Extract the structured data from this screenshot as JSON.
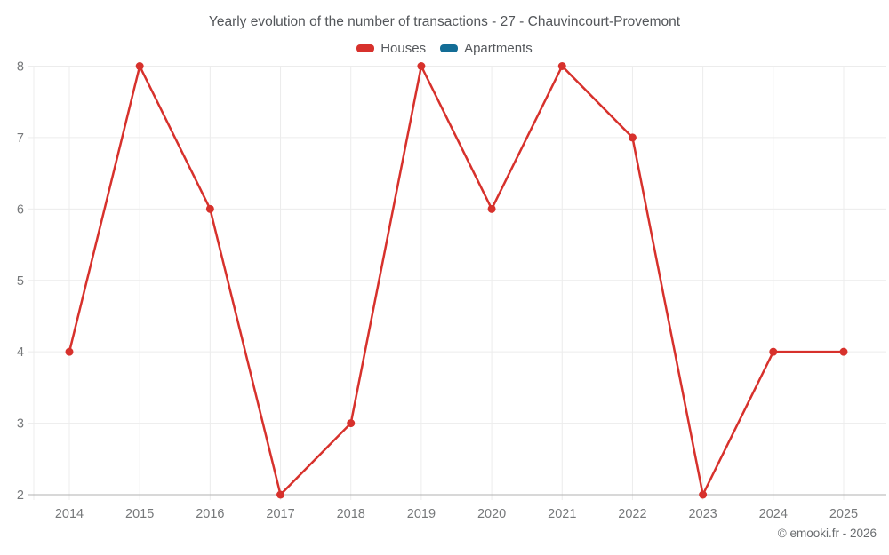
{
  "title": "Yearly evolution of the number of transactions - 27 - Chauvincourt-Provemont",
  "legend": {
    "items": [
      {
        "label": "Houses",
        "color": "#d7312c"
      },
      {
        "label": "Apartments",
        "color": "#136d96"
      }
    ]
  },
  "watermark": "© emooki.fr - 2026",
  "colors": {
    "grid": "#ececec",
    "axis": "#b1b1b1",
    "tick_text": "#76787a",
    "houses": "#d7312c",
    "apartments": "#136d96"
  },
  "chart_data": {
    "type": "line",
    "title": "Yearly evolution of the number of transactions - 27 - Chauvincourt-Provemont",
    "x": [
      "2014",
      "2015",
      "2016",
      "2017",
      "2018",
      "2019",
      "2020",
      "2021",
      "2022",
      "2023",
      "2024",
      "2025"
    ],
    "series": [
      {
        "name": "Houses",
        "color": "#d7312c",
        "values": [
          4,
          8,
          6,
          2,
          3,
          8,
          6,
          8,
          7,
          2,
          4,
          4
        ]
      },
      {
        "name": "Apartments",
        "color": "#136d96",
        "values": []
      }
    ],
    "xlabel": "",
    "ylabel": "",
    "ylim": [
      2,
      8
    ],
    "yticks": [
      2,
      3,
      4,
      5,
      6,
      7,
      8
    ],
    "grid": true,
    "legend_position": "top",
    "marker": "circle"
  }
}
